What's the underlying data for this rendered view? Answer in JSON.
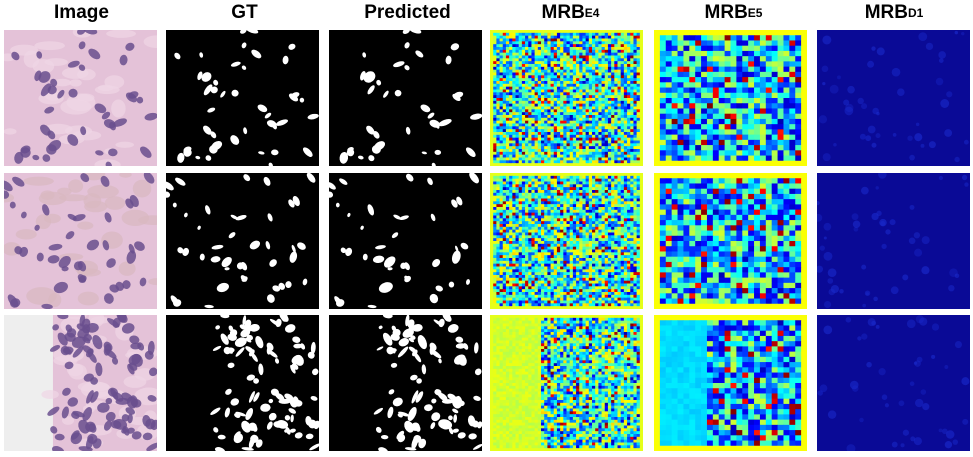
{
  "columns": [
    {
      "id": "image",
      "label": "Image",
      "sub": ""
    },
    {
      "id": "gt",
      "label": "GT",
      "sub": ""
    },
    {
      "id": "predicted",
      "label": "Predicted",
      "sub": ""
    },
    {
      "id": "mrb-e4",
      "label": "MRB",
      "sub": "E4"
    },
    {
      "id": "mrb-e5",
      "label": "MRB",
      "sub": "E5"
    },
    {
      "id": "mrb-d1",
      "label": "MRB",
      "sub": "D1"
    }
  ],
  "rows": 3,
  "colors": {
    "he_pink": "#e4c2d8",
    "he_nuclei": "#6a4f8e",
    "mask_bg": "#000000",
    "mask_fg": "#ffffff",
    "jet_low": "#0000a0",
    "jet_high": "#ff2000",
    "d1_bg": "#0a0a96"
  }
}
